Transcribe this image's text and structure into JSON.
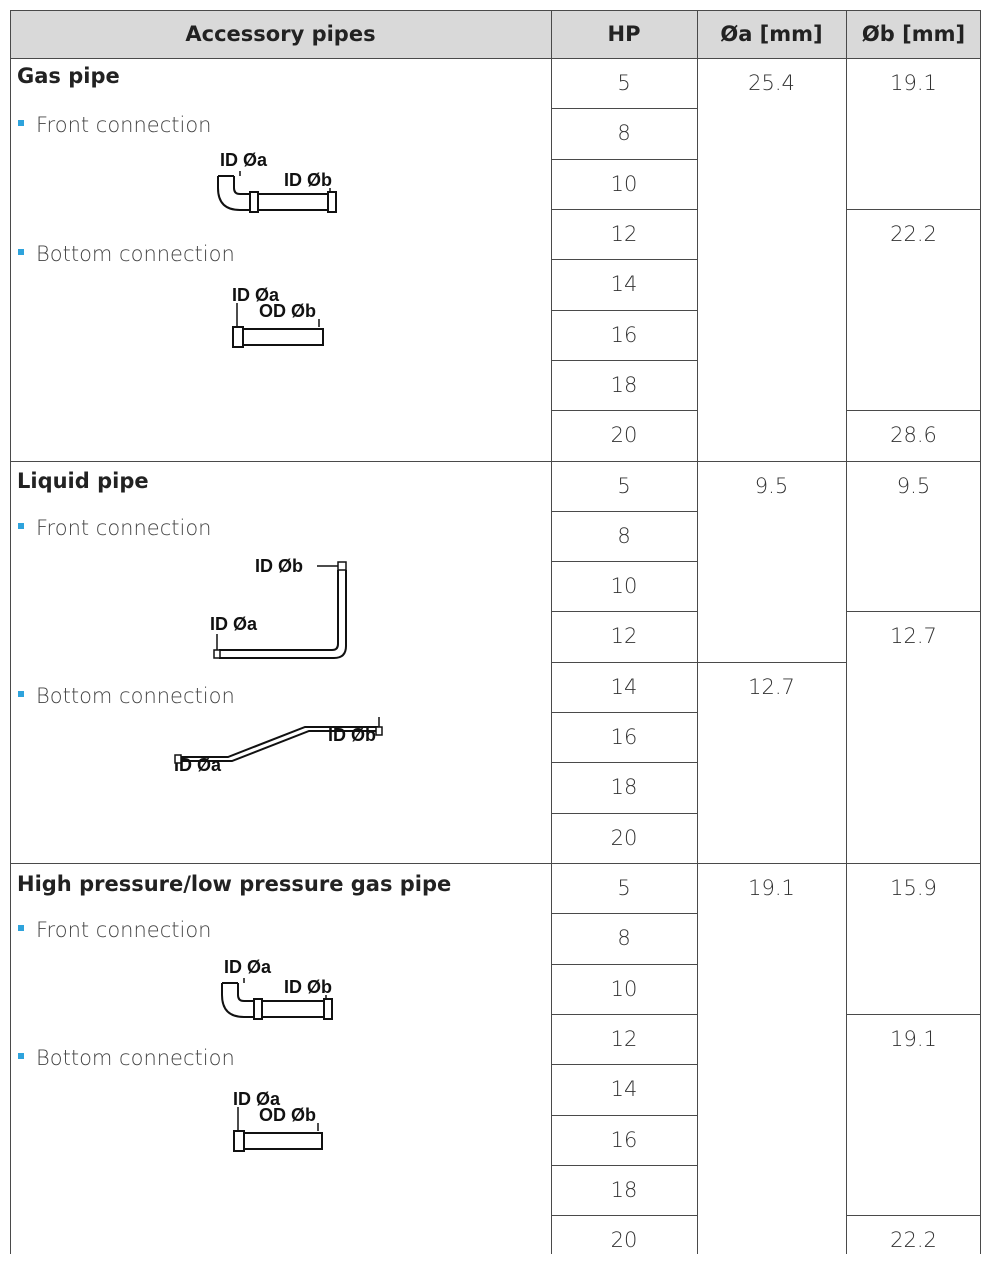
{
  "header": {
    "col1": "Accessory pipes",
    "col2": "HP",
    "col3": "Øa [mm]",
    "col4": "Øb [mm]"
  },
  "sections": [
    {
      "title": "Gas pipe",
      "front": "Front connection",
      "bottom": "Bottom connection",
      "front_labels": [
        "ID Øa",
        "ID Øb"
      ],
      "bottom_labels": [
        "ID Øa",
        "OD Øb"
      ],
      "hp": [
        "5",
        "8",
        "10",
        "12",
        "14",
        "16",
        "18",
        "20"
      ],
      "oa": [
        "25.4"
      ],
      "ob": [
        "19.1",
        "22.2",
        "28.6"
      ]
    },
    {
      "title": "Liquid pipe",
      "front": "Front connection",
      "bottom": "Bottom connection",
      "front_labels": [
        "ID Øb",
        "ID Øa"
      ],
      "bottom_labels": [
        "ID Øb",
        "ID Øa"
      ],
      "hp": [
        "5",
        "8",
        "10",
        "12",
        "14",
        "16",
        "18",
        "20"
      ],
      "oa": [
        "9.5",
        "12.7"
      ],
      "ob": [
        "9.5",
        "12.7"
      ]
    },
    {
      "title": "High pressure/low pressure gas pipe",
      "front": "Front connection",
      "bottom": "Bottom connection",
      "front_labels": [
        "ID Øa",
        "ID Øb"
      ],
      "bottom_labels": [
        "ID Øa",
        "OD Øb"
      ],
      "hp": [
        "5",
        "8",
        "10",
        "12",
        "14",
        "16",
        "18",
        "20"
      ],
      "oa": [
        "19.1"
      ],
      "ob": [
        "15.9",
        "19.1",
        "22.2"
      ]
    }
  ],
  "colors": {
    "header_bg": "#d9d9d9",
    "bullet": "#2ea3dc",
    "rule": "#4a4a4a"
  }
}
